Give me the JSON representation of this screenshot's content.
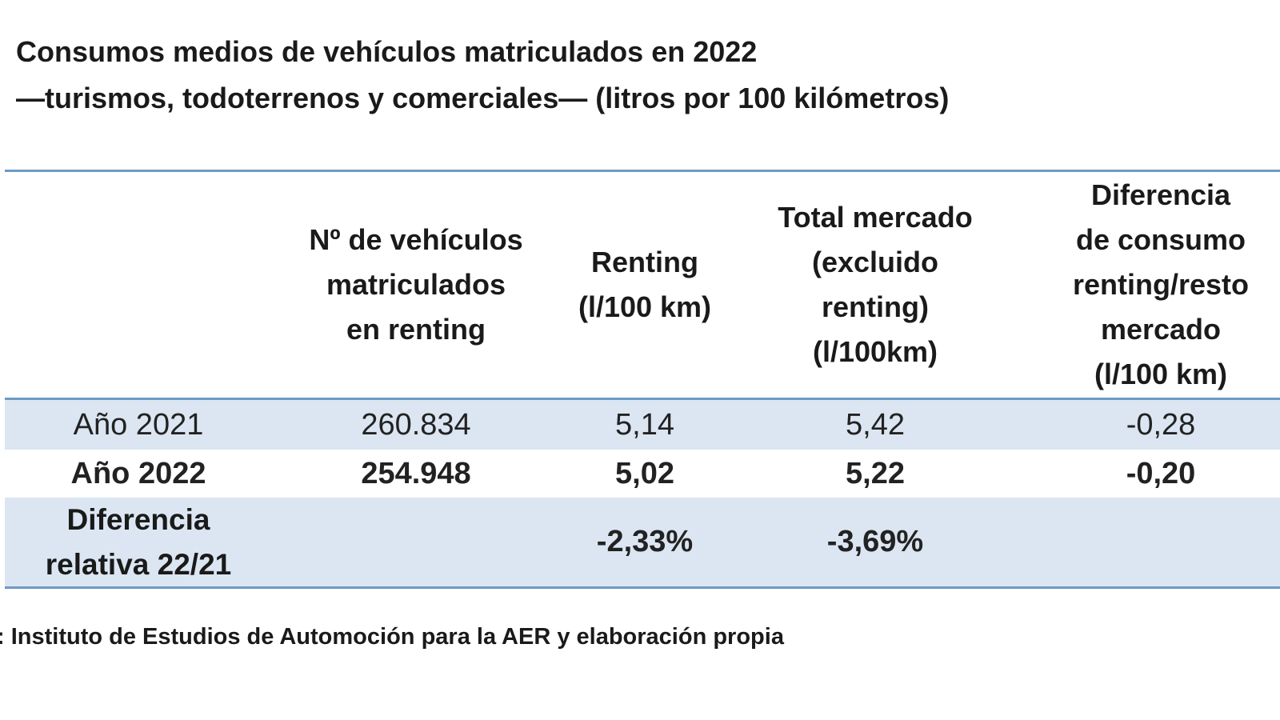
{
  "title": {
    "line1": "Consumos medios de vehículos matriculados en 2022",
    "line2": "—turismos, todoterrenos y comerciales— (litros por 100 kilómetros)"
  },
  "table": {
    "headers": {
      "col1": [
        "Nº de vehículos",
        "matriculados",
        "en renting"
      ],
      "col2": [
        "Renting",
        "(l/100 km)"
      ],
      "col3": [
        "Total mercado",
        "(excluido",
        "renting)",
        "(l/100km)"
      ],
      "col4": [
        "Diferencia",
        "de consumo",
        "renting/resto",
        "mercado",
        "(l/100 km)"
      ]
    },
    "rows": [
      {
        "label": "Año 2021",
        "vehicles": "260.834",
        "renting": "5,14",
        "total": "5,42",
        "difference": "-0,28"
      },
      {
        "label": "Año 2022",
        "vehicles": "254.948",
        "renting": "5,02",
        "total": "5,22",
        "difference": "-0,20"
      }
    ],
    "relative": {
      "label": [
        "Diferencia",
        "relativa 22/21"
      ],
      "renting": "-2,33%",
      "total": "-3,69%"
    }
  },
  "source": ": Instituto de Estudios de Automoción para la AER y elaboración propia",
  "colors": {
    "border": "#6d9ac4",
    "row_shade": "#dce6f2"
  }
}
